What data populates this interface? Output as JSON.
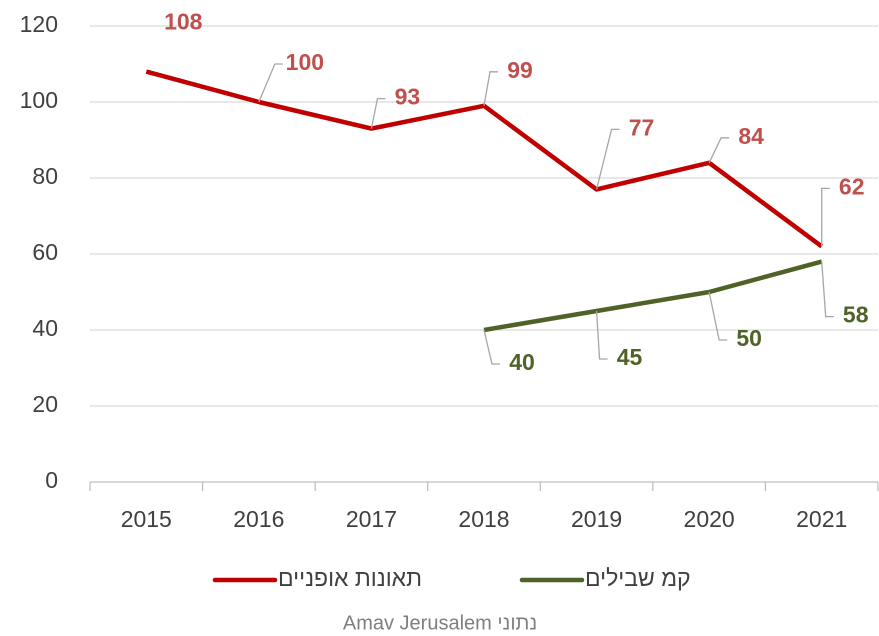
{
  "chart_data": {
    "type": "line",
    "categories": [
      "2015",
      "2016",
      "2017",
      "2018",
      "2019",
      "2020",
      "2021"
    ],
    "series": [
      {
        "name": "תאונות אופניים",
        "color": "#c00000",
        "label_color": "#c0504d",
        "values": [
          108,
          100,
          93,
          99,
          77,
          84,
          62
        ]
      },
      {
        "name": "קמ שבילים",
        "color": "#4f6228",
        "label_color": "#4f6228",
        "values": [
          null,
          null,
          null,
          40,
          45,
          50,
          58
        ]
      }
    ],
    "ylim": [
      0,
      120
    ],
    "yticks": [
      0,
      20,
      40,
      60,
      80,
      100,
      120
    ],
    "grid": true,
    "legend": "bottom",
    "source": "נתוני Amav Jerusalem"
  }
}
